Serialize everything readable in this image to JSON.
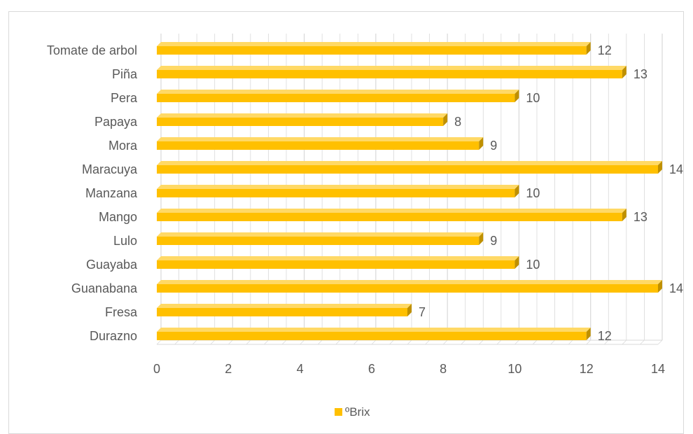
{
  "chart_data": {
    "type": "bar",
    "orientation": "horizontal",
    "style": "3d-clustered-bar",
    "title": "",
    "xlabel": "",
    "ylabel": "",
    "categories": [
      "Durazno",
      "Fresa",
      "Guanabana",
      "Guayaba",
      "Lulo",
      "Mango",
      "Manzana",
      "Maracuya",
      "Mora",
      "Papaya",
      "Pera",
      "Piña",
      "Tomate de arbol"
    ],
    "series": [
      {
        "name": "ºBrix",
        "values": [
          12,
          7,
          14,
          10,
          9,
          13,
          10,
          14,
          9,
          8,
          10,
          13,
          12
        ],
        "color": "#FFC000"
      }
    ],
    "xlim": [
      0,
      14
    ],
    "x_ticks": [
      "0",
      "2",
      "4",
      "6",
      "8",
      "10",
      "12",
      "14"
    ],
    "data_labels": [
      "12",
      "7",
      "14",
      "10",
      "9",
      "13",
      "10",
      "14",
      "9",
      "8",
      "10",
      "13",
      "12"
    ],
    "grid": true,
    "legend": "bottom",
    "colors": {
      "bar_front": "#FFC000",
      "bar_top": "#FFD966",
      "bar_side": "#BF9000",
      "grid": "#d9d9d9",
      "text": "#595959",
      "border": "#d9d9d9"
    }
  }
}
